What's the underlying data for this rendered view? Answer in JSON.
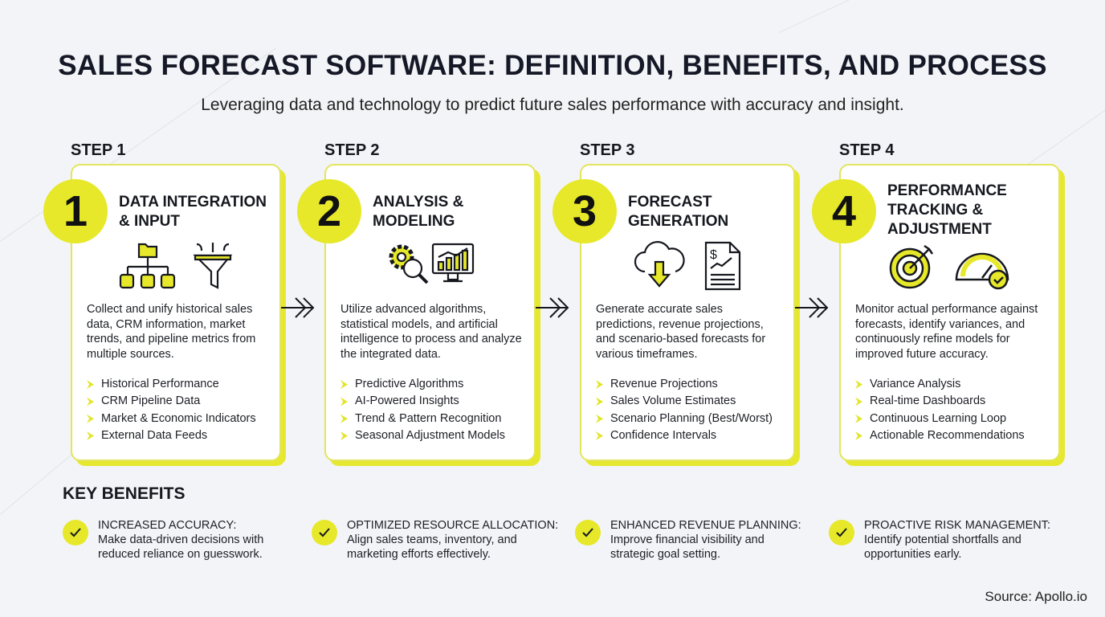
{
  "title": "SALES FORECAST SOFTWARE: DEFINITION, BENEFITS, AND PROCESS",
  "subtitle": "Leveraging data and technology to predict future sales performance with accuracy and insight.",
  "accent_color": "#e6e829",
  "steps": [
    {
      "label": "STEP 1",
      "number": "1",
      "title_lines": [
        "DATA INTEGRATION",
        "& INPUT"
      ],
      "icons": [
        "hierarchy-folder-icon",
        "funnel-icon"
      ],
      "description": "Collect and unify historical sales data, CRM information, market trends, and pipeline metrics from multiple sources.",
      "bullets": [
        "Historical Performance",
        "CRM Pipeline Data",
        "Market & Economic Indicators",
        "External Data Feeds"
      ]
    },
    {
      "label": "STEP 2",
      "number": "2",
      "title_lines": [
        "ANALYSIS &",
        "MODELING"
      ],
      "icons": [
        "gear-magnifier-icon",
        "monitor-chart-icon"
      ],
      "description": "Utilize advanced algorithms, statistical models, and artificial intelligence to process and analyze the integrated data.",
      "bullets": [
        "Predictive Algorithms",
        "AI-Powered Insights",
        "Trend & Pattern Recognition",
        "Seasonal Adjustment Models"
      ]
    },
    {
      "label": "STEP 3",
      "number": "3",
      "title_lines": [
        "FORECAST",
        "GENERATION"
      ],
      "icons": [
        "cloud-download-icon",
        "financial-report-icon"
      ],
      "description": "Generate accurate sales predictions, revenue projections, and scenario-based forecasts for various timeframes.",
      "bullets": [
        "Revenue Projections",
        "Sales Volume Estimates",
        "Scenario Planning (Best/Worst)",
        "Confidence Intervals"
      ]
    },
    {
      "label": "STEP 4",
      "number": "4",
      "title_lines": [
        "PERFORMANCE",
        "TRACKING &",
        "ADJUSTMENT"
      ],
      "icons": [
        "target-icon",
        "gauge-check-icon"
      ],
      "description": "Monitor actual performance against forecasts, identify variances, and continuously refine models for improved future accuracy.",
      "bullets": [
        "Variance Analysis",
        "Real-time Dashboards",
        "Continuous Learning Loop",
        "Actionable Recommendations"
      ]
    }
  ],
  "key_benefits": {
    "heading": "KEY BENEFITS",
    "items": [
      {
        "title": "INCREASED ACCURACY:",
        "lines": [
          "Make data-driven decisions with",
          "reduced reliance on guesswork."
        ]
      },
      {
        "title": "OPTIMIZED RESOURCE ALLOCATION:",
        "lines": [
          "Align sales teams, inventory, and",
          "marketing efforts effectively."
        ]
      },
      {
        "title": "ENHANCED REVENUE PLANNING:",
        "lines": [
          "Improve financial visibility and",
          "strategic goal setting."
        ]
      },
      {
        "title": "PROACTIVE RISK MANAGEMENT:",
        "lines": [
          "Identify potential shortfalls and",
          "opportunities early."
        ]
      }
    ]
  },
  "source": "Source: Apollo.io"
}
